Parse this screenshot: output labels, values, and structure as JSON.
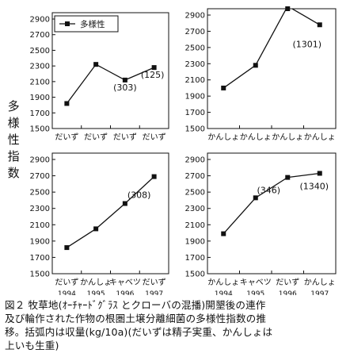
{
  "y_axis_label": "多様性指数",
  "caption": [
    "図２ 牧草地(ｵｰﾁｬｰﾄﾞｸﾞﾗｽ とクローバの混播)開墾後の連作",
    "及び輪作された作物の根圏土壌分離細菌の多様性指数の推",
    "移。括弧内は収量(kg/10a)(だいずは精子実重、かんしょは",
    "上いも生重)"
  ],
  "chart_data": [
    {
      "type": "line",
      "legend": "多様性",
      "legend_position": "top-left",
      "categories": [
        "だいず",
        "だいず",
        "だいず",
        "だいず"
      ],
      "years": [],
      "values": [
        1820,
        2320,
        2120,
        2280
      ],
      "annotations": [
        {
          "index": 2,
          "text": "(303)"
        },
        {
          "index": 3,
          "text": "(125)"
        }
      ],
      "ylim": [
        1500,
        2900
      ],
      "yticks": [
        1500,
        1700,
        1900,
        2100,
        2300,
        2500,
        2700,
        2900
      ],
      "grid": false,
      "color": "#111111"
    },
    {
      "type": "line",
      "categories": [
        "かんしょ",
        "かんしょ",
        "かんしょ",
        "かんしょ"
      ],
      "years": [],
      "values": [
        2000,
        2280,
        3010,
        2780
      ],
      "annotations": [
        {
          "index": 3,
          "text": "(1301)"
        }
      ],
      "ylim": [
        1500,
        2900
      ],
      "yticks": [
        1500,
        1700,
        1900,
        2100,
        2300,
        2500,
        2700,
        2900
      ],
      "grid": false,
      "color": "#111111"
    },
    {
      "type": "line",
      "categories": [
        "だいず",
        "かんしょ",
        "キャベツ",
        "だいず"
      ],
      "years": [
        "1994",
        "1995",
        "1996",
        "1997"
      ],
      "values": [
        1820,
        2050,
        2360,
        2690
      ],
      "annotations": [
        {
          "index": 3,
          "text": "(308)"
        }
      ],
      "ylim": [
        1500,
        2900
      ],
      "yticks": [
        1500,
        1700,
        1900,
        2100,
        2300,
        2500,
        2700,
        2900
      ],
      "grid": false,
      "color": "#111111"
    },
    {
      "type": "line",
      "categories": [
        "かんしょ",
        "キャベツ",
        "だいず",
        "かんしょ"
      ],
      "years": [
        "1994",
        "1995",
        "1996",
        "1997"
      ],
      "values": [
        1990,
        2430,
        2680,
        2730
      ],
      "annotations": [
        {
          "index": 2,
          "text": "(346)"
        },
        {
          "index": 3,
          "text": "(1340)"
        }
      ],
      "ylim": [
        1500,
        2900
      ],
      "yticks": [
        1500,
        1700,
        1900,
        2100,
        2300,
        2500,
        2700,
        2900
      ],
      "grid": false,
      "color": "#111111"
    }
  ]
}
